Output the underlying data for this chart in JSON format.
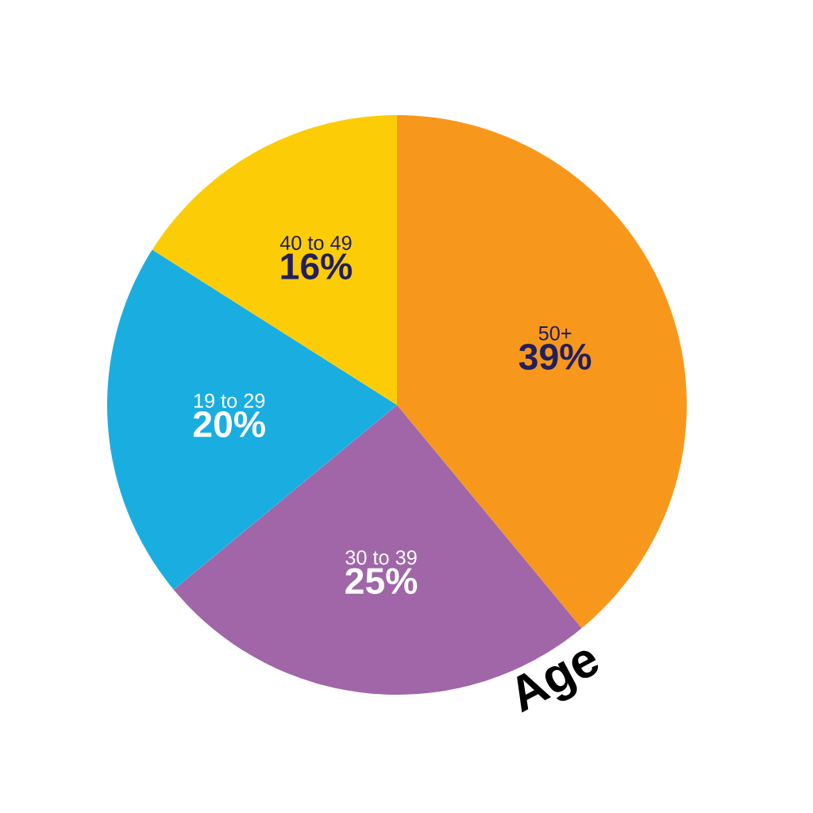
{
  "chart_data": {
    "type": "pie",
    "title": "Age",
    "categories": [
      "50+",
      "30 to 39",
      "19 to 29",
      "40 to 49"
    ],
    "values": [
      39,
      25,
      20,
      16
    ],
    "value_labels": [
      "39%",
      "25%",
      "20%",
      "16%"
    ],
    "colors": [
      "#f7981d",
      "#a066a8",
      "#1aaee0",
      "#fccc07"
    ]
  }
}
